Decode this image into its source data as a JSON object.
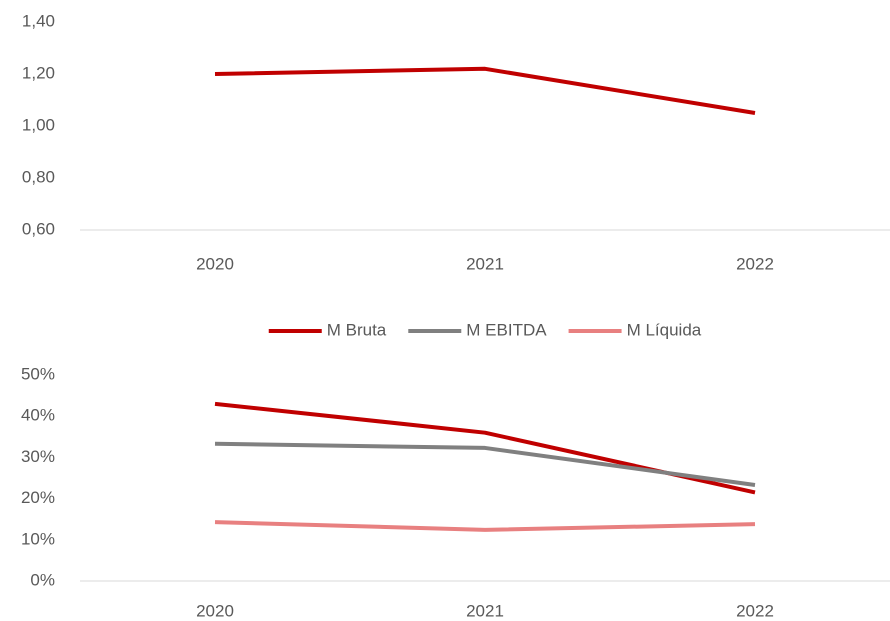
{
  "chart_data": [
    {
      "type": "line",
      "categories": [
        "2020",
        "2021",
        "2022"
      ],
      "values": [
        1.2,
        1.22,
        1.05
      ],
      "color": "#c00000",
      "ylim": [
        0.6,
        1.4
      ],
      "yticks": [
        {
          "value": 0.6,
          "label": "0,60"
        },
        {
          "value": 0.8,
          "label": "0,80"
        },
        {
          "value": 1.0,
          "label": "1,00"
        },
        {
          "value": 1.2,
          "label": "1,20"
        },
        {
          "value": 1.4,
          "label": "1,40"
        }
      ],
      "grid": false
    },
    {
      "type": "line",
      "categories": [
        "2020",
        "2021",
        "2022"
      ],
      "series": [
        {
          "name": "M Bruta",
          "color": "#c00000",
          "values": [
            43,
            36,
            21.5
          ]
        },
        {
          "name": "M EBITDA",
          "color": "#808080",
          "values": [
            33.3,
            32.3,
            23.3
          ]
        },
        {
          "name": "M Líquida",
          "color": "#e88080",
          "values": [
            14.3,
            12.4,
            13.8
          ]
        }
      ],
      "ylim": [
        0,
        50
      ],
      "yticks": [
        {
          "value": 0,
          "label": "0%"
        },
        {
          "value": 10,
          "label": "10%"
        },
        {
          "value": 20,
          "label": "20%"
        },
        {
          "value": 30,
          "label": "30%"
        },
        {
          "value": 40,
          "label": "40%"
        },
        {
          "value": 50,
          "label": "50%"
        }
      ],
      "legend": "top",
      "grid": false
    }
  ]
}
